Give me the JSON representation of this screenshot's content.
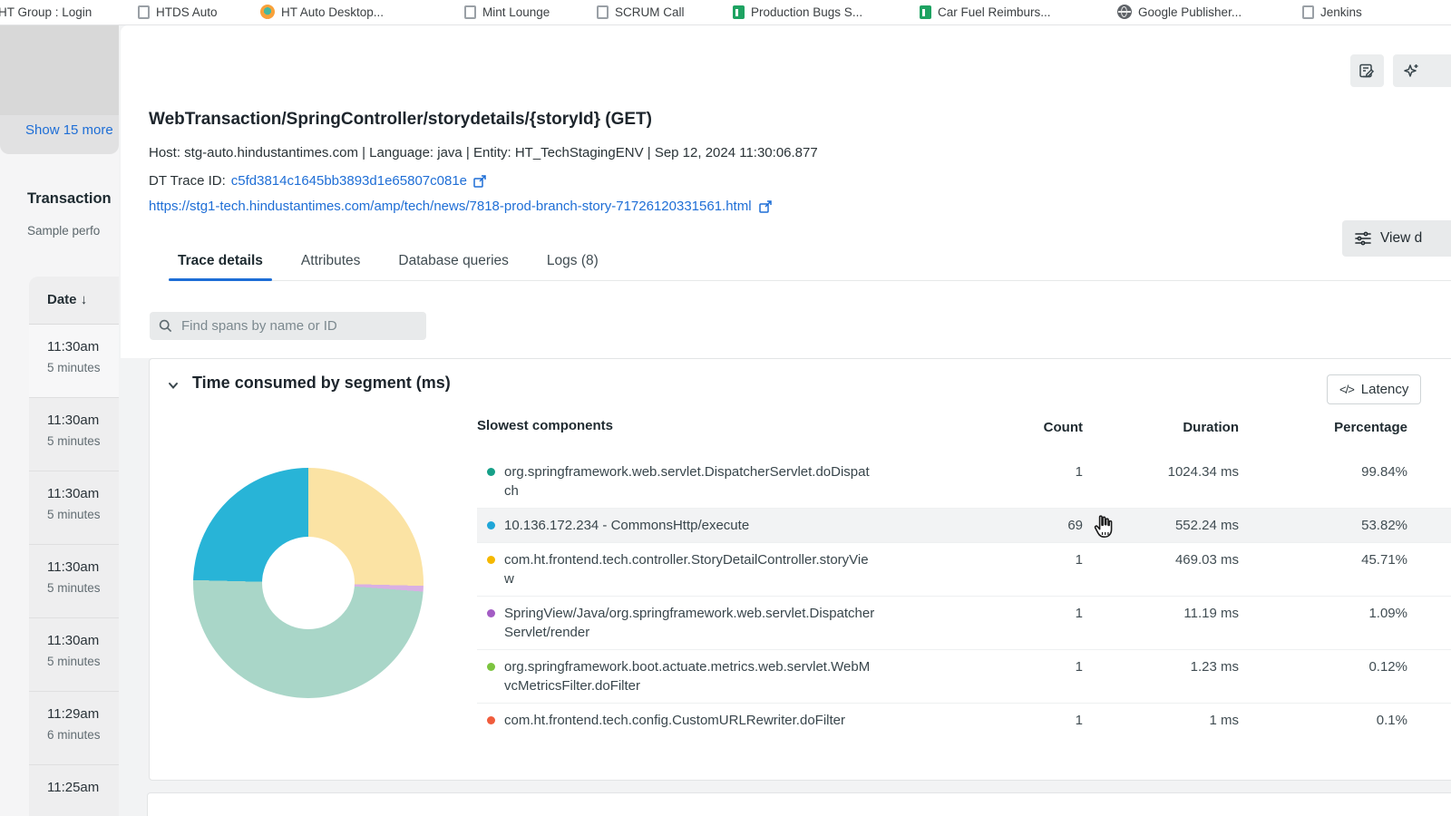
{
  "bookmarks_bar": {
    "items": [
      {
        "label": "HT Group : Login",
        "icon": "page"
      },
      {
        "label": "HTDS Auto",
        "icon": "page"
      },
      {
        "label": "HT Auto Desktop...",
        "icon": "firefox"
      },
      {
        "label": "Mint Lounge",
        "icon": "page"
      },
      {
        "label": "SCRUM Call",
        "icon": "page"
      },
      {
        "label": "Production Bugs S...",
        "icon": "sheet"
      },
      {
        "label": "Car Fuel Reimburs...",
        "icon": "sheet"
      },
      {
        "label": "Google Publisher...",
        "icon": "globe"
      },
      {
        "label": "Jenkins",
        "icon": "page"
      }
    ]
  },
  "sidebar": {
    "show_more": "Show 15 more",
    "panel_title": "Transaction",
    "panel_subtitle": "Sample perfo",
    "date_header": "Date",
    "sort_arrow": "↓",
    "entries": [
      {
        "time": "11:30am",
        "duration": "5 minutes"
      },
      {
        "time": "11:30am",
        "duration": "5 minutes"
      },
      {
        "time": "11:30am",
        "duration": "5 minutes"
      },
      {
        "time": "11:30am",
        "duration": "5 minutes"
      },
      {
        "time": "11:30am",
        "duration": "5 minutes"
      },
      {
        "time": "11:29am",
        "duration": "6 minutes"
      },
      {
        "time": "11:25am",
        "duration": ""
      }
    ]
  },
  "header": {
    "title": "WebTransaction/SpringController/storydetails/{storyId} (GET)",
    "meta": "Host: stg-auto.hindustantimes.com | Language: java | Entity: HT_TechStagingENV | Sep 12, 2024 11:30:06.877",
    "trace_id_label": "DT Trace ID:",
    "trace_id": "c5fd3814c1645bb3893d1e65807c081e",
    "url": "https://stg1-tech.hindustantimes.com/amp/tech/news/7818-prod-branch-story-71726120331561.html",
    "view_button_label": "View d"
  },
  "tabs": [
    {
      "label": "Trace details",
      "active": true
    },
    {
      "label": "Attributes",
      "active": false
    },
    {
      "label": "Database queries",
      "active": false
    },
    {
      "label": "Logs (8)",
      "active": false
    }
  ],
  "search": {
    "placeholder": "Find spans by name or ID"
  },
  "section": {
    "title": "Time consumed by segment (ms)",
    "latency_label": "Latency",
    "code_glyph": "</>",
    "table": {
      "headers": [
        "Slowest components",
        "Count",
        "Duration",
        "Percentage"
      ],
      "rows": [
        {
          "dot_color": "#16a088",
          "name": "org.springframework.web.servlet.DispatcherServlet.doDispatch",
          "count": "1",
          "duration": "1024.34 ms",
          "percentage": "99.84%",
          "hover": false
        },
        {
          "dot_color": "#1fa6d8",
          "name": "10.136.172.234 - CommonsHttp/execute",
          "count": "69",
          "duration": "552.24 ms",
          "percentage": "53.82%",
          "hover": true
        },
        {
          "dot_color": "#f5b800",
          "name": "com.ht.frontend.tech.controller.StoryDetailController.storyView",
          "count": "1",
          "duration": "469.03 ms",
          "percentage": "45.71%",
          "hover": false
        },
        {
          "dot_color": "#a35cc4",
          "name": "SpringView/Java/org.springframework.web.servlet.DispatcherServlet/render",
          "count": "1",
          "duration": "11.19 ms",
          "percentage": "1.09%",
          "hover": false
        },
        {
          "dot_color": "#7cc43f",
          "name": "org.springframework.boot.actuate.metrics.web.servlet.WebMvcMetricsFilter.doFilter",
          "count": "1",
          "duration": "1.23 ms",
          "percentage": "0.12%",
          "hover": false
        },
        {
          "dot_color": "#f05c3c",
          "name": "com.ht.frontend.tech.config.CustomURLRewriter.doFilter",
          "count": "1",
          "duration": "1 ms",
          "percentage": "0.1%",
          "hover": false
        }
      ]
    }
  },
  "chart_data": {
    "type": "pie",
    "title": "Time consumed by segment (ms)",
    "style": "donut",
    "legend_position": "none",
    "segments": [
      {
        "color": "#fbe3a4",
        "percent": 25.4
      },
      {
        "color": "#d9b0e3",
        "percent": 0.8
      },
      {
        "color": "#a9d6c8",
        "percent": 49.2
      },
      {
        "color": "#28b4d7",
        "percent": 24.6
      }
    ]
  },
  "colors": {
    "link_blue": "#1e6ed6",
    "tab_underline": "#1e6ed6",
    "hover_row": "#f2f3f4",
    "card_border": "#e2e4e5"
  }
}
